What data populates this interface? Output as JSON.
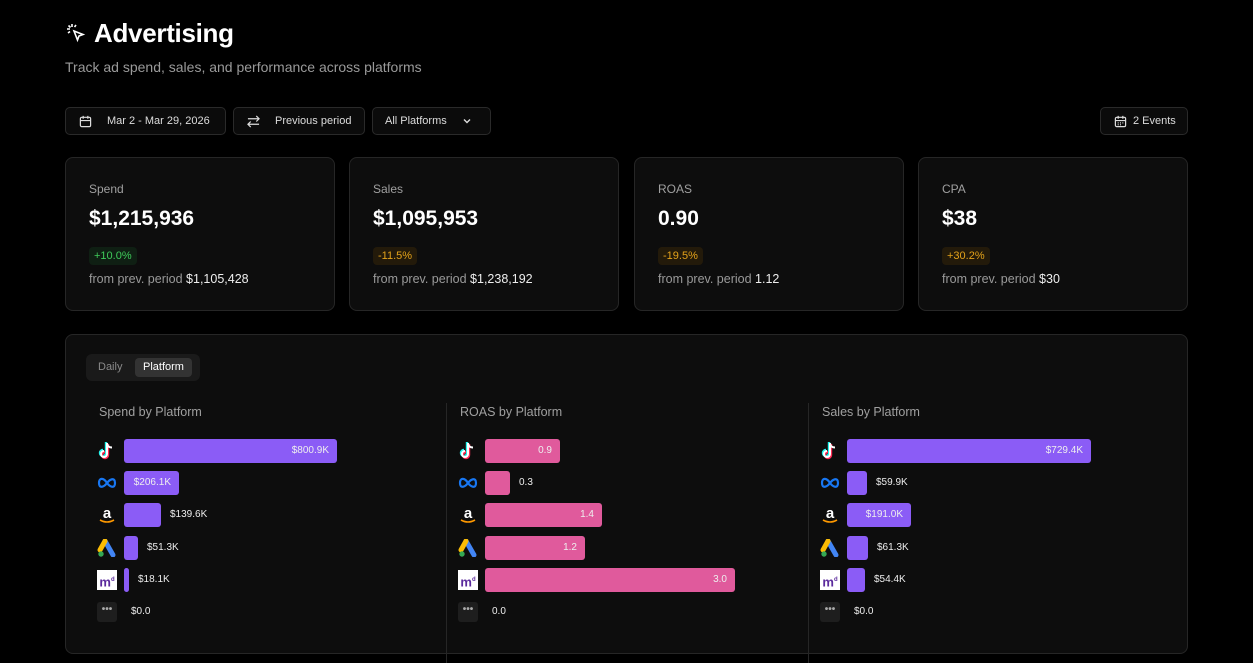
{
  "header": {
    "title": "Advertising",
    "subtitle": "Track ad spend, sales, and performance across platforms",
    "icon": "cursor-click-icon"
  },
  "toolbar": {
    "date_range": "Mar 2 - Mar 29, 2026",
    "compare": "Previous period",
    "platform_select": "All Platforms",
    "events": "2 Events"
  },
  "cards": [
    {
      "label": "Spend",
      "value": "$1,215,936",
      "change": "+10.0%",
      "status": "good",
      "prev_label": "from prev. period",
      "prev_value": "$1,105,428"
    },
    {
      "label": "Sales",
      "value": "$1,095,953",
      "change": "-11.5%",
      "status": "warn",
      "prev_label": "from prev. period",
      "prev_value": "$1,238,192"
    },
    {
      "label": "ROAS",
      "value": "0.90",
      "change": "-19.5%",
      "status": "warn",
      "prev_label": "from prev. period",
      "prev_value": "1.12"
    },
    {
      "label": "CPA",
      "value": "$38",
      "change": "+30.2%",
      "status": "warn",
      "prev_label": "from prev. period",
      "prev_value": "$30"
    }
  ],
  "tabs": {
    "daily": "Daily",
    "platform": "Platform",
    "active": "Platform"
  },
  "platforms": [
    "TikTok",
    "Meta",
    "Amazon",
    "Google Ads",
    "Mntn",
    "Other"
  ],
  "chart_data": [
    {
      "type": "bar",
      "orientation": "horizontal",
      "title": "Spend by Platform",
      "color": "#8b5cf6",
      "categories": [
        "TikTok",
        "Meta",
        "Amazon",
        "Google Ads",
        "Mntn",
        "Other"
      ],
      "values": [
        800.9,
        206.1,
        139.6,
        51.3,
        18.1,
        0
      ],
      "unit": "$K",
      "labels": [
        "$800.9K",
        "$206.1K",
        "$139.6K",
        "$51.3K",
        "$18.1K",
        "$0.0"
      ]
    },
    {
      "type": "bar",
      "orientation": "horizontal",
      "title": "ROAS by Platform",
      "color": "#e05a9c",
      "categories": [
        "TikTok",
        "Meta",
        "Amazon",
        "Google Ads",
        "Mntn",
        "Other"
      ],
      "values": [
        0.9,
        0.3,
        1.4,
        1.2,
        3.0,
        0
      ],
      "labels": [
        "0.9",
        "0.3",
        "1.4",
        "1.2",
        "3.0",
        "0.0"
      ]
    },
    {
      "type": "bar",
      "orientation": "horizontal",
      "title": "Sales by Platform",
      "color": "#8b5cf6",
      "categories": [
        "TikTok",
        "Meta",
        "Amazon",
        "Google Ads",
        "Mntn",
        "Other"
      ],
      "values": [
        729.4,
        59.9,
        191.0,
        61.3,
        54.4,
        0
      ],
      "unit": "$K",
      "labels": [
        "$729.4K",
        "$59.9K",
        "$191.0K",
        "$61.3K",
        "$54.4K",
        "$0.0"
      ]
    }
  ]
}
